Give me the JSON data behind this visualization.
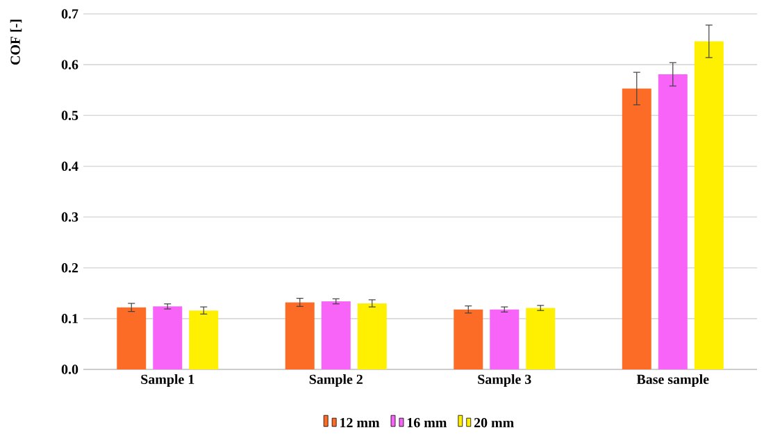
{
  "chart_data": {
    "type": "bar",
    "ylabel": "COF [-]",
    "categories": [
      "Sample 1",
      "Sample 2",
      "Sample 3",
      "Base sample"
    ],
    "series": [
      {
        "name": "12 mm",
        "color": "#fd6c26",
        "values": [
          0.122,
          0.132,
          0.118,
          0.553
        ],
        "errors": [
          0.008,
          0.008,
          0.007,
          0.032
        ]
      },
      {
        "name": "16 mm",
        "color": "#f863f8",
        "values": [
          0.124,
          0.134,
          0.118,
          0.581
        ],
        "errors": [
          0.005,
          0.005,
          0.005,
          0.023
        ]
      },
      {
        "name": "20 mm",
        "color": "#fef000",
        "values": [
          0.116,
          0.13,
          0.121,
          0.646
        ],
        "errors": [
          0.007,
          0.007,
          0.005,
          0.032
        ]
      }
    ],
    "ylim": [
      0,
      0.7
    ],
    "yticks": [
      {
        "value": 0,
        "label": "0.0"
      },
      0.1,
      0.2,
      0.3,
      0.4,
      0.5,
      0.6,
      0.7
    ],
    "grid": "y",
    "legend": "bottom"
  }
}
